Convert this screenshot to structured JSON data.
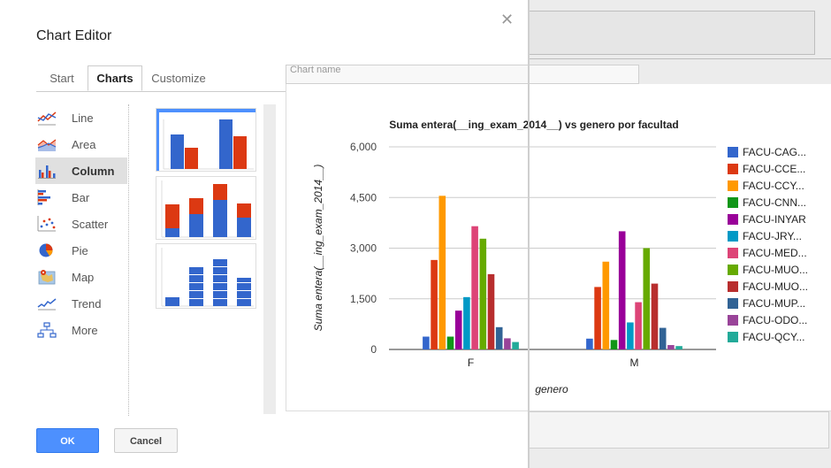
{
  "dialog": {
    "title": "Chart Editor",
    "tabs": [
      {
        "label": "Start"
      },
      {
        "label": "Charts"
      },
      {
        "label": "Customize"
      }
    ],
    "chart_types": [
      {
        "label": "Line",
        "icon": "line-chart-icon"
      },
      {
        "label": "Area",
        "icon": "area-chart-icon"
      },
      {
        "label": "Column",
        "icon": "column-chart-icon"
      },
      {
        "label": "Bar",
        "icon": "bar-chart-icon"
      },
      {
        "label": "Scatter",
        "icon": "scatter-chart-icon"
      },
      {
        "label": "Pie",
        "icon": "pie-chart-icon"
      },
      {
        "label": "Map",
        "icon": "map-chart-icon"
      },
      {
        "label": "Trend",
        "icon": "trend-chart-icon"
      },
      {
        "label": "More",
        "icon": "more-charts-icon"
      }
    ],
    "chart_name_field": "Chart name",
    "buttons": {
      "ok": "OK",
      "cancel": "Cancel"
    },
    "colors": {
      "accent": "#4d90fe",
      "selected_type_bg": "#e0e0e0"
    }
  },
  "chart_data": {
    "type": "bar",
    "title": "Suma entera(__ing_exam_2014__) vs genero por facultad",
    "xlabel": "genero",
    "ylabel": "Suma entera(__ing_exam_2014__)",
    "categories": [
      "F",
      "M"
    ],
    "ylim": [
      0,
      6000
    ],
    "yticks": [
      "0",
      "1,500",
      "3,000",
      "4,500",
      "6,000"
    ],
    "ytick_values": [
      0,
      1500,
      3000,
      4500,
      6000
    ],
    "legend_position": "right",
    "series": [
      {
        "name": "FACU-CAG...",
        "color": "#3366cc",
        "values": [
          380,
          320
        ]
      },
      {
        "name": "FACU-CCE...",
        "color": "#dc3912",
        "values": [
          2650,
          1850
        ]
      },
      {
        "name": "FACU-CCY...",
        "color": "#ff9900",
        "values": [
          4550,
          2600
        ]
      },
      {
        "name": "FACU-CNN...",
        "color": "#109618",
        "values": [
          380,
          280
        ]
      },
      {
        "name": "FACU-INYAR",
        "color": "#990099",
        "values": [
          1150,
          3500
        ]
      },
      {
        "name": "FACU-JRY...",
        "color": "#0099c6",
        "values": [
          1550,
          800
        ]
      },
      {
        "name": "FACU-MED...",
        "color": "#dd4477",
        "values": [
          3650,
          1400
        ]
      },
      {
        "name": "FACU-MUO...",
        "color": "#66aa00",
        "values": [
          3280,
          3000
        ]
      },
      {
        "name": "FACU-MUO...",
        "color": "#b82e2e",
        "values": [
          2230,
          1950
        ]
      },
      {
        "name": "FACU-MUP...",
        "color": "#316395",
        "values": [
          660,
          640
        ]
      },
      {
        "name": "FACU-ODO...",
        "color": "#994499",
        "values": [
          330,
          130
        ]
      },
      {
        "name": "FACU-QCY...",
        "color": "#22aa99",
        "values": [
          220,
          100
        ]
      }
    ]
  }
}
